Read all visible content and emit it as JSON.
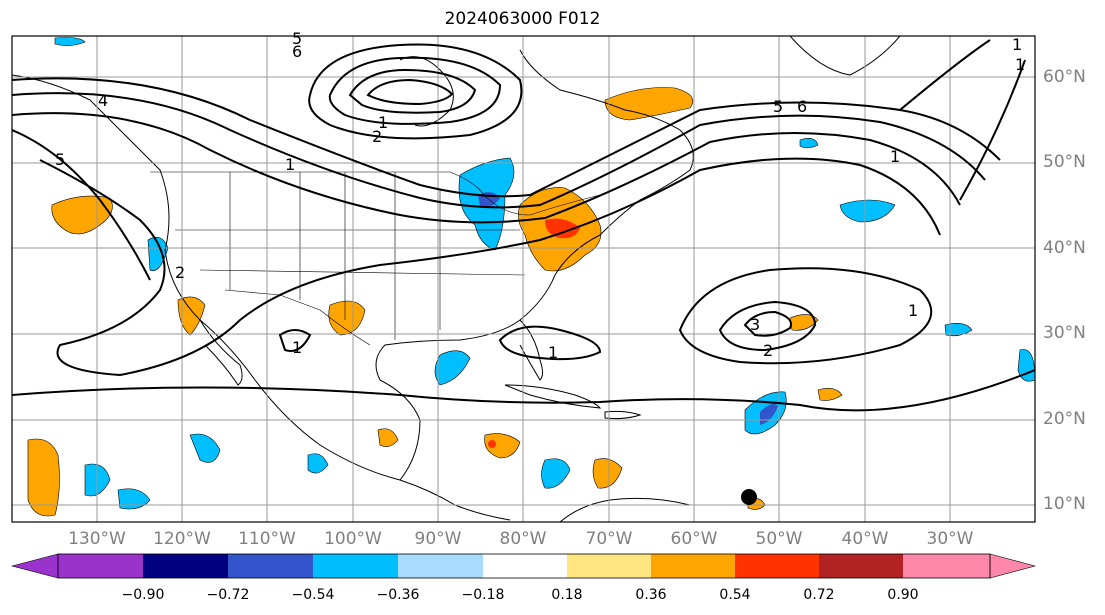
{
  "title": "2024063000 F012",
  "chart_data": {
    "type": "other",
    "title": "2024063000 F012",
    "projection": "plate carree",
    "lon_range": [
      -140,
      -20
    ],
    "lat_range": [
      8,
      65
    ],
    "gridlines": true,
    "lat_ticks": [
      "10°N",
      "20°N",
      "30°N",
      "40°N",
      "50°N",
      "60°N"
    ],
    "lon_ticks": [
      "130°W",
      "120°W",
      "110°W",
      "100°W",
      "90°W",
      "80°W",
      "70°W",
      "60°W",
      "50°W",
      "40°W",
      "30°W"
    ],
    "contour_labels": [
      "6",
      "5",
      "4",
      "5",
      "2",
      "2",
      "1",
      "1",
      "1",
      "1",
      "1",
      "1",
      "3",
      "2",
      "5",
      "6",
      "1",
      "1"
    ],
    "colorbar": {
      "ticks": [
        "−0.90",
        "−0.72",
        "−0.54",
        "−0.36",
        "−0.18",
        "0.18",
        "0.36",
        "0.54",
        "0.72",
        "0.90"
      ],
      "colors": [
        "#9933cc",
        "#000080",
        "#3355cc",
        "#00bfff",
        "#aadcff",
        "#ffffff",
        "#ffe680",
        "#ffa500",
        "#ff3300",
        "#b22222",
        "#ff88aa"
      ],
      "extend": "both"
    }
  }
}
